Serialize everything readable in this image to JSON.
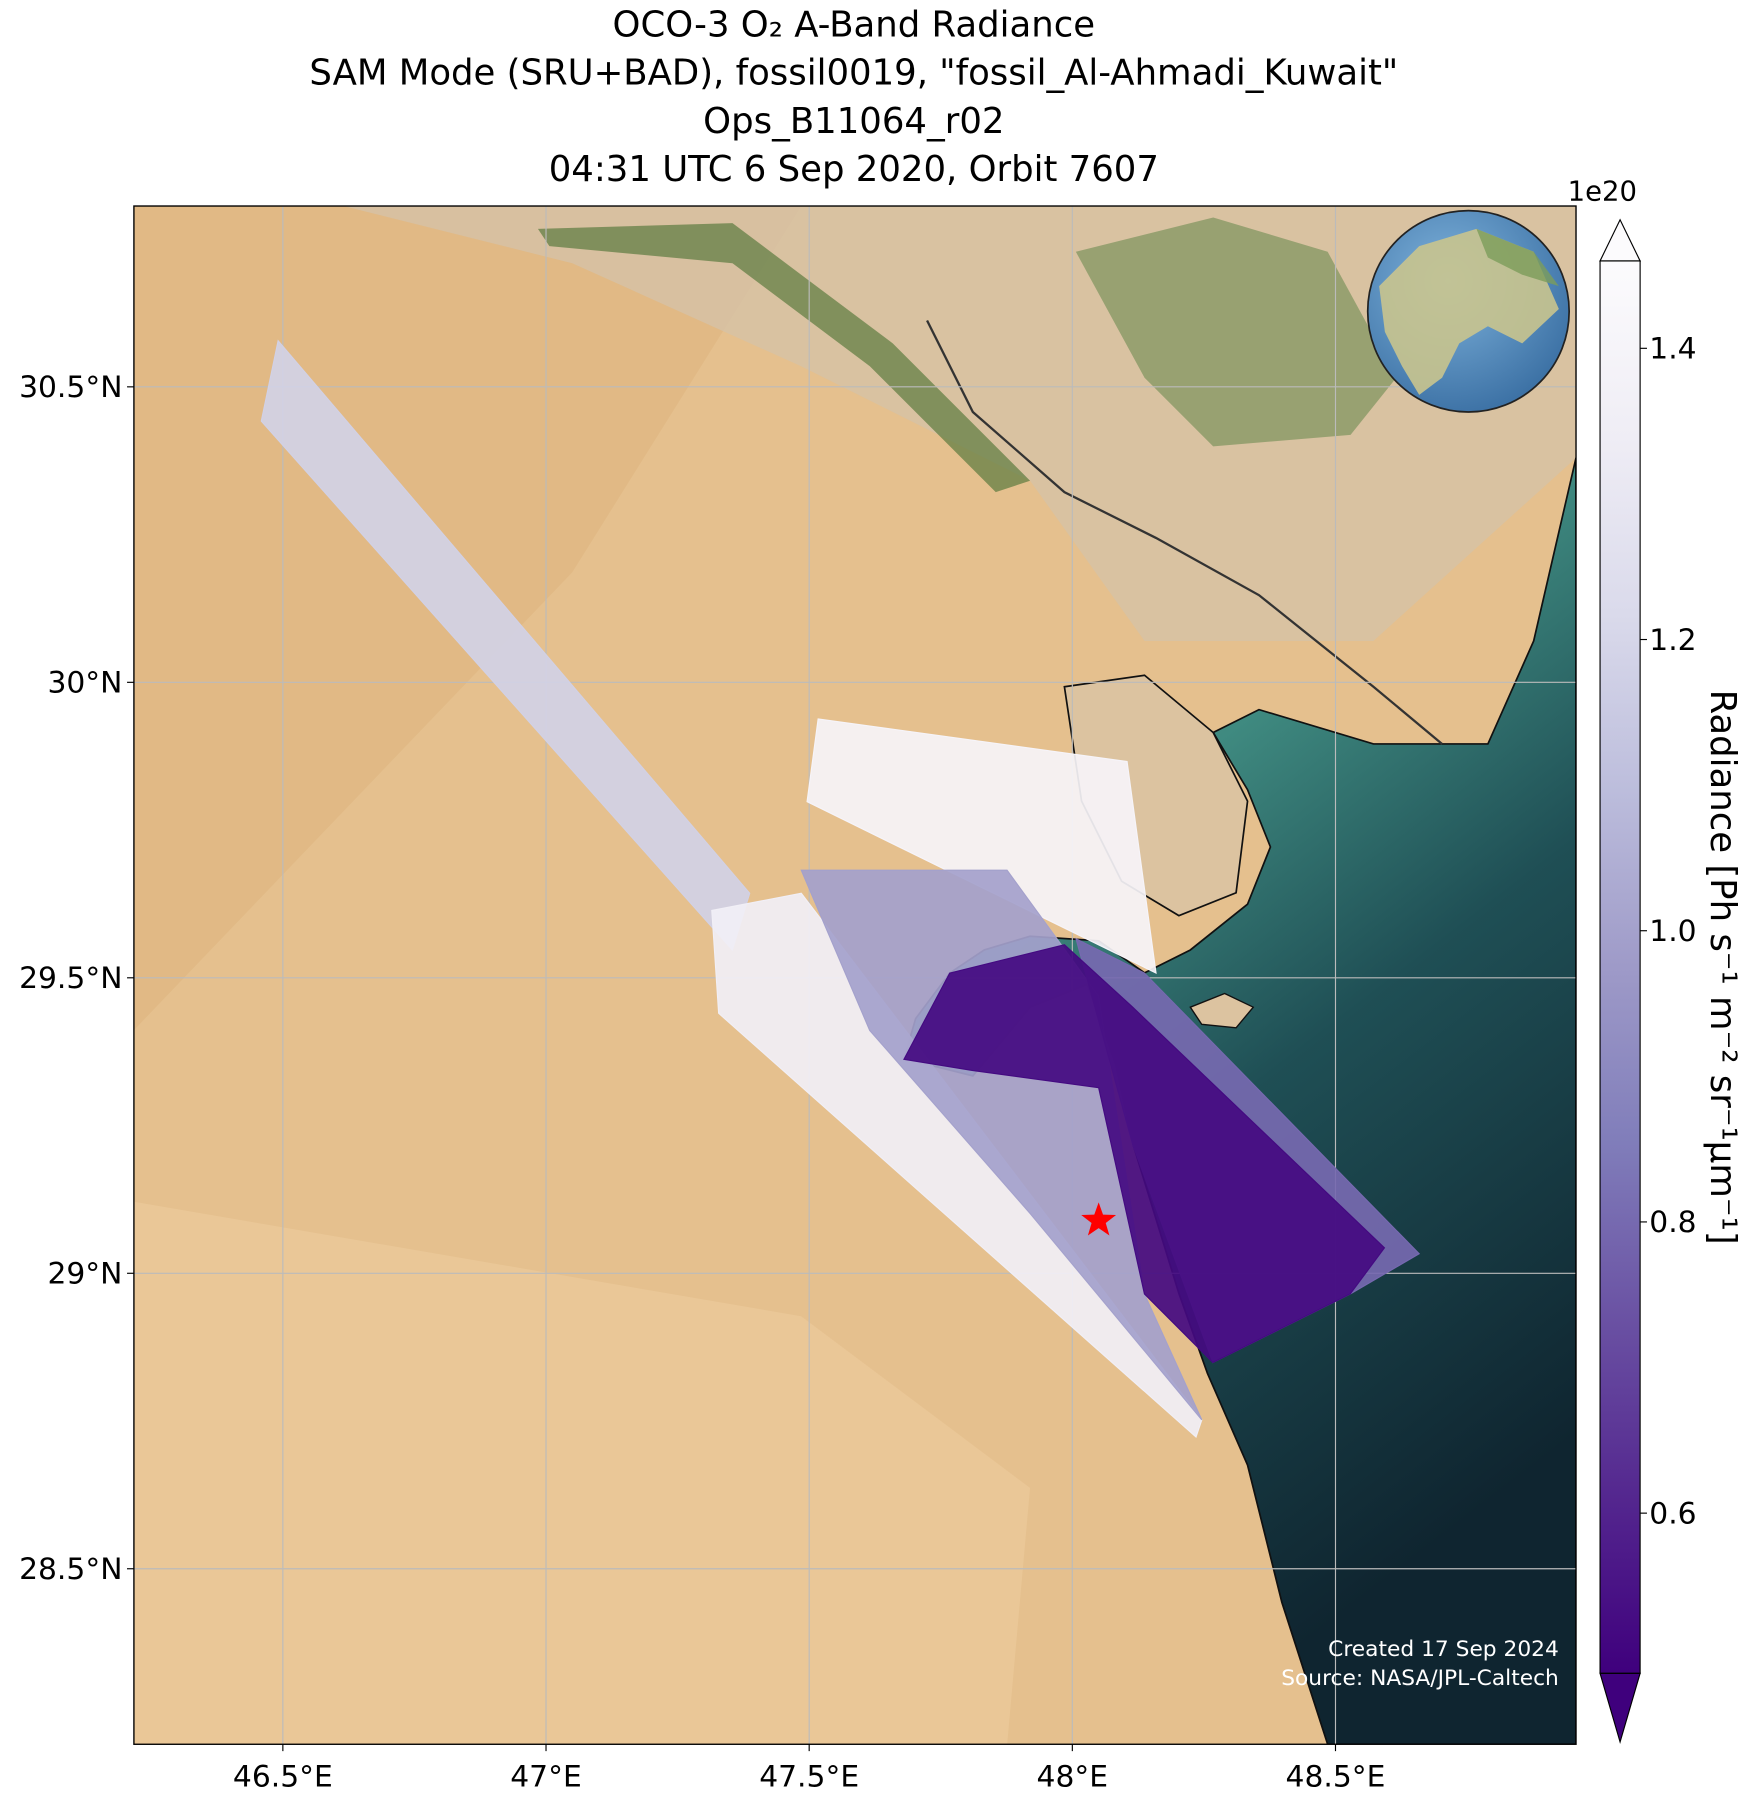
{
  "chart_data": {
    "type": "map",
    "title": [
      "OCO-3 O₂ A-Band Radiance",
      "SAM Mode (SRU+BAD), fossil0019, \"fossil_Al-Ahmadi_Kuwait\"",
      "Ops_B11064_r02",
      "04:31 UTC 6 Sep 2020, Orbit 7607"
    ],
    "xlim": [
      46.217,
      48.957
    ],
    "ylim": [
      28.203,
      30.806
    ],
    "xticks": [
      {
        "value": 46.5,
        "label": "46.5°E"
      },
      {
        "value": 47,
        "label": "47°E"
      },
      {
        "value": 47.5,
        "label": "47.5°E"
      },
      {
        "value": 48,
        "label": "48°E"
      },
      {
        "value": 48.5,
        "label": "48.5°E"
      }
    ],
    "yticks": [
      {
        "value": 28.5,
        "label": "28.5°N"
      },
      {
        "value": 29,
        "label": "29°N"
      },
      {
        "value": 29.5,
        "label": "29.5°N"
      },
      {
        "value": 30,
        "label": "30°N"
      },
      {
        "value": 30.5,
        "label": "30.5°N"
      }
    ],
    "grid": true,
    "footprints": [
      {
        "value": 1.18,
        "lon": [
          46.459,
          46.491,
          47.387,
          47.354
        ],
        "lat": [
          30.442,
          30.578,
          29.643,
          29.547
        ]
      },
      {
        "value": 1.4,
        "lon": [
          47.517,
          48.104,
          48.159,
          47.496
        ],
        "lat": [
          29.938,
          29.866,
          29.508,
          29.798
        ]
      },
      {
        "value": 1.36,
        "lon": [
          47.315,
          47.485,
          48.246,
          48.235,
          47.328
        ],
        "lat": [
          29.614,
          29.643,
          28.752,
          28.723,
          29.44
        ]
      },
      {
        "value": 1.0,
        "lon": [
          47.485,
          47.876,
          48.05,
          48.137,
          48.246,
          47.92,
          47.615
        ],
        "lat": [
          29.682,
          29.682,
          29.469,
          28.965,
          28.752,
          29.101,
          29.411
        ]
      },
      {
        "value": 0.8,
        "lon": [
          48.007,
          48.137,
          48.659,
          48.528,
          48.267,
          48.115
        ],
        "lat": [
          29.566,
          29.508,
          29.033,
          28.965,
          28.849,
          29.217
        ]
      },
      {
        "value": 0.52,
        "lon": [
          47.68,
          47.767,
          47.985,
          48.115,
          48.593,
          48.528,
          48.267,
          48.137,
          48.05,
          47.811
        ],
        "lat": [
          29.362,
          29.508,
          29.556,
          29.45,
          29.043,
          28.965,
          28.849,
          28.965,
          29.314,
          29.343
        ]
      }
    ],
    "site": {
      "lon": 48.05,
      "lat": 29.089,
      "color": "#ff0000"
    },
    "colorbar": {
      "label": "Radiance [Ph s⁻¹ m⁻² sr⁻¹μm⁻¹]",
      "multiplier": "1e20",
      "clim": [
        0.49,
        1.46
      ],
      "ticks": [
        0.6,
        0.8,
        {
          "value": 1,
          "label": "1.0"
        },
        1.2,
        1.4
      ],
      "colormap": [
        "#3f007d",
        "#54278f",
        "#6a51a3",
        "#807dba",
        "#9e9ac8",
        "#bcbddc",
        "#dadaeb",
        "#efedf5",
        "#fcfbfd"
      ]
    },
    "credits": [
      "Created 17 Sep 2024",
      "Source: NASA/JPL-Caltech"
    ]
  }
}
